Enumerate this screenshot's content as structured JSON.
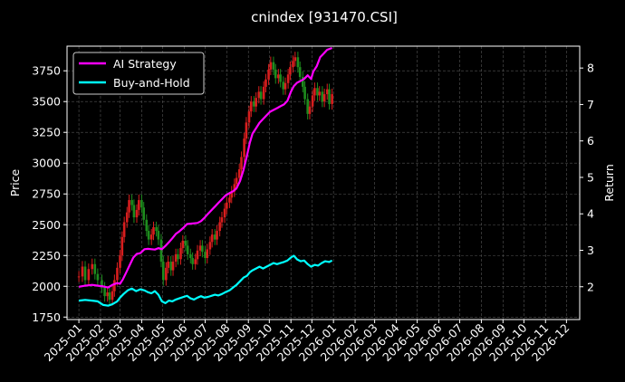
{
  "chart_data": {
    "type": "line",
    "title": "cnindex [931470.CSI]",
    "ylabel_left": "Price",
    "ylabel_right": "Return",
    "xlim": [
      "2024-12-15",
      "2026-12-20"
    ],
    "ylim_left": [
      1730,
      3950
    ],
    "ylim_right": [
      1.1,
      8.6
    ],
    "grid": true,
    "legend": "top-left",
    "x_ticks": [
      "2025-01",
      "2025-02",
      "2025-03",
      "2025-04",
      "2025-05",
      "2025-06",
      "2025-07",
      "2025-08",
      "2025-09",
      "2025-10",
      "2025-11",
      "2025-12",
      "2026-01",
      "2026-02",
      "2026-03",
      "2026-04",
      "2026-05",
      "2026-06",
      "2026-07",
      "2026-08",
      "2026-09",
      "2026-10",
      "2026-11",
      "2026-12"
    ],
    "y_ticks_left": [
      1750,
      2000,
      2250,
      2500,
      2750,
      3000,
      3250,
      3500,
      3750
    ],
    "y_ticks_right": [
      2,
      3,
      4,
      5,
      6,
      7,
      8
    ],
    "candles": {
      "name": "price",
      "colors": {
        "up": "#d81e1e",
        "down": "#1e8c1e"
      },
      "points": [
        [
          "2025-01-01",
          2080
        ],
        [
          "2025-01-06",
          2160
        ],
        [
          "2025-01-10",
          2050
        ],
        [
          "2025-01-15",
          2140
        ],
        [
          "2025-01-20",
          2180
        ],
        [
          "2025-01-24",
          2100
        ],
        [
          "2025-01-28",
          2050
        ],
        [
          "2025-02-03",
          1990
        ],
        [
          "2025-02-07",
          1920
        ],
        [
          "2025-02-11",
          1950
        ],
        [
          "2025-02-14",
          1890
        ],
        [
          "2025-02-18",
          1960
        ],
        [
          "2025-02-21",
          2050
        ],
        [
          "2025-02-25",
          2150
        ],
        [
          "2025-03-01",
          2250
        ],
        [
          "2025-03-04",
          2400
        ],
        [
          "2025-03-07",
          2520
        ],
        [
          "2025-03-11",
          2600
        ],
        [
          "2025-03-14",
          2700
        ],
        [
          "2025-03-18",
          2660
        ],
        [
          "2025-03-21",
          2560
        ],
        [
          "2025-03-25",
          2620
        ],
        [
          "2025-03-28",
          2700
        ],
        [
          "2025-04-01",
          2640
        ],
        [
          "2025-04-04",
          2540
        ],
        [
          "2025-04-08",
          2450
        ],
        [
          "2025-04-11",
          2380
        ],
        [
          "2025-04-15",
          2420
        ],
        [
          "2025-04-18",
          2480
        ],
        [
          "2025-04-22",
          2450
        ],
        [
          "2025-04-25",
          2380
        ],
        [
          "2025-04-29",
          2200
        ],
        [
          "2025-05-02",
          2050
        ],
        [
          "2025-05-06",
          2150
        ],
        [
          "2025-05-09",
          2200
        ],
        [
          "2025-05-13",
          2130
        ],
        [
          "2025-05-16",
          2200
        ],
        [
          "2025-05-20",
          2260
        ],
        [
          "2025-05-23",
          2220
        ],
        [
          "2025-05-27",
          2310
        ],
        [
          "2025-05-30",
          2370
        ],
        [
          "2025-06-03",
          2330
        ],
        [
          "2025-06-06",
          2260
        ],
        [
          "2025-06-10",
          2230
        ],
        [
          "2025-06-13",
          2180
        ],
        [
          "2025-06-17",
          2220
        ],
        [
          "2025-06-20",
          2290
        ],
        [
          "2025-06-24",
          2330
        ],
        [
          "2025-06-27",
          2280
        ],
        [
          "2025-07-01",
          2230
        ],
        [
          "2025-07-04",
          2300
        ],
        [
          "2025-07-08",
          2360
        ],
        [
          "2025-07-11",
          2420
        ],
        [
          "2025-07-15",
          2380
        ],
        [
          "2025-07-18",
          2450
        ],
        [
          "2025-07-22",
          2520
        ],
        [
          "2025-07-25",
          2560
        ],
        [
          "2025-07-29",
          2630
        ],
        [
          "2025-08-01",
          2680
        ],
        [
          "2025-08-05",
          2720
        ],
        [
          "2025-08-08",
          2770
        ],
        [
          "2025-08-12",
          2830
        ],
        [
          "2025-08-15",
          2880
        ],
        [
          "2025-08-19",
          2950
        ],
        [
          "2025-08-22",
          3050
        ],
        [
          "2025-08-26",
          3200
        ],
        [
          "2025-08-29",
          3330
        ],
        [
          "2025-09-02",
          3420
        ],
        [
          "2025-09-05",
          3500
        ],
        [
          "2025-09-09",
          3460
        ],
        [
          "2025-09-12",
          3530
        ],
        [
          "2025-09-16",
          3580
        ],
        [
          "2025-09-19",
          3520
        ],
        [
          "2025-09-23",
          3620
        ],
        [
          "2025-09-26",
          3680
        ],
        [
          "2025-09-30",
          3760
        ],
        [
          "2025-10-03",
          3820
        ],
        [
          "2025-10-07",
          3760
        ],
        [
          "2025-10-10",
          3690
        ],
        [
          "2025-10-14",
          3720
        ],
        [
          "2025-10-17",
          3660
        ],
        [
          "2025-10-21",
          3600
        ],
        [
          "2025-10-24",
          3650
        ],
        [
          "2025-10-28",
          3720
        ],
        [
          "2025-10-31",
          3780
        ],
        [
          "2025-11-04",
          3830
        ],
        [
          "2025-11-07",
          3860
        ],
        [
          "2025-11-11",
          3780
        ],
        [
          "2025-11-14",
          3700
        ],
        [
          "2025-11-18",
          3620
        ],
        [
          "2025-11-21",
          3520
        ],
        [
          "2025-11-25",
          3400
        ],
        [
          "2025-11-28",
          3460
        ],
        [
          "2025-12-02",
          3550
        ],
        [
          "2025-12-05",
          3610
        ],
        [
          "2025-12-09",
          3550
        ],
        [
          "2025-12-12",
          3580
        ],
        [
          "2025-12-16",
          3500
        ],
        [
          "2025-12-19",
          3560
        ],
        [
          "2025-12-23",
          3600
        ],
        [
          "2025-12-26",
          3480
        ],
        [
          "2025-12-30",
          3560
        ]
      ]
    },
    "series": [
      {
        "name": "AI Strategy",
        "axis": "right",
        "color": "#ff00ff",
        "points": [
          [
            "2025-01-01",
            2.0
          ],
          [
            "2025-01-10",
            2.03
          ],
          [
            "2025-01-20",
            2.05
          ],
          [
            "2025-01-28",
            2.03
          ],
          [
            "2025-02-05",
            2.01
          ],
          [
            "2025-02-12",
            1.98
          ],
          [
            "2025-02-18",
            2.05
          ],
          [
            "2025-02-25",
            2.1
          ],
          [
            "2025-03-01",
            2.08
          ],
          [
            "2025-03-05",
            2.2
          ],
          [
            "2025-03-10",
            2.4
          ],
          [
            "2025-03-15",
            2.6
          ],
          [
            "2025-03-20",
            2.8
          ],
          [
            "2025-03-25",
            2.9
          ],
          [
            "2025-03-30",
            2.92
          ],
          [
            "2025-04-05",
            3.03
          ],
          [
            "2025-04-10",
            3.04
          ],
          [
            "2025-04-15",
            3.03
          ],
          [
            "2025-04-20",
            3.02
          ],
          [
            "2025-04-25",
            3.06
          ],
          [
            "2025-04-30",
            3.03
          ],
          [
            "2025-05-05",
            3.12
          ],
          [
            "2025-05-10",
            3.22
          ],
          [
            "2025-05-15",
            3.33
          ],
          [
            "2025-05-20",
            3.45
          ],
          [
            "2025-05-25",
            3.52
          ],
          [
            "2025-05-31",
            3.62
          ],
          [
            "2025-06-05",
            3.72
          ],
          [
            "2025-06-10",
            3.73
          ],
          [
            "2025-06-15",
            3.74
          ],
          [
            "2025-06-20",
            3.75
          ],
          [
            "2025-06-25",
            3.8
          ],
          [
            "2025-06-30",
            3.89
          ],
          [
            "2025-07-05",
            4.0
          ],
          [
            "2025-07-10",
            4.1
          ],
          [
            "2025-07-15",
            4.2
          ],
          [
            "2025-07-20",
            4.3
          ],
          [
            "2025-07-25",
            4.4
          ],
          [
            "2025-07-30",
            4.5
          ],
          [
            "2025-08-05",
            4.57
          ],
          [
            "2025-08-10",
            4.62
          ],
          [
            "2025-08-15",
            4.7
          ],
          [
            "2025-08-20",
            4.9
          ],
          [
            "2025-08-25",
            5.2
          ],
          [
            "2025-08-30",
            5.6
          ],
          [
            "2025-09-03",
            5.95
          ],
          [
            "2025-09-07",
            6.2
          ],
          [
            "2025-09-12",
            6.35
          ],
          [
            "2025-09-17",
            6.5
          ],
          [
            "2025-09-22",
            6.6
          ],
          [
            "2025-09-27",
            6.7
          ],
          [
            "2025-10-02",
            6.8
          ],
          [
            "2025-10-07",
            6.85
          ],
          [
            "2025-10-12",
            6.9
          ],
          [
            "2025-10-17",
            6.95
          ],
          [
            "2025-10-22",
            7.0
          ],
          [
            "2025-10-27",
            7.1
          ],
          [
            "2025-11-01",
            7.35
          ],
          [
            "2025-11-05",
            7.5
          ],
          [
            "2025-11-10",
            7.6
          ],
          [
            "2025-11-15",
            7.65
          ],
          [
            "2025-11-20",
            7.7
          ],
          [
            "2025-11-25",
            7.8
          ],
          [
            "2025-11-30",
            7.7
          ],
          [
            "2025-12-03",
            7.9
          ],
          [
            "2025-12-08",
            8.05
          ],
          [
            "2025-12-13",
            8.3
          ],
          [
            "2025-12-18",
            8.4
          ],
          [
            "2025-12-23",
            8.5
          ],
          [
            "2025-12-30",
            8.55
          ]
        ]
      },
      {
        "name": "Buy-and-Hold",
        "axis": "right",
        "color": "#00ffff",
        "points": [
          [
            "2025-01-01",
            1.62
          ],
          [
            "2025-01-10",
            1.64
          ],
          [
            "2025-01-20",
            1.62
          ],
          [
            "2025-01-28",
            1.6
          ],
          [
            "2025-02-05",
            1.5
          ],
          [
            "2025-02-12",
            1.48
          ],
          [
            "2025-02-18",
            1.52
          ],
          [
            "2025-02-25",
            1.6
          ],
          [
            "2025-03-01",
            1.7
          ],
          [
            "2025-03-06",
            1.8
          ],
          [
            "2025-03-12",
            1.9
          ],
          [
            "2025-03-18",
            1.95
          ],
          [
            "2025-03-24",
            1.88
          ],
          [
            "2025-03-30",
            1.93
          ],
          [
            "2025-04-05",
            1.9
          ],
          [
            "2025-04-10",
            1.85
          ],
          [
            "2025-04-15",
            1.82
          ],
          [
            "2025-04-20",
            1.88
          ],
          [
            "2025-04-25",
            1.78
          ],
          [
            "2025-04-30",
            1.6
          ],
          [
            "2025-05-05",
            1.55
          ],
          [
            "2025-05-10",
            1.62
          ],
          [
            "2025-05-15",
            1.6
          ],
          [
            "2025-05-20",
            1.65
          ],
          [
            "2025-05-25",
            1.68
          ],
          [
            "2025-05-31",
            1.72
          ],
          [
            "2025-06-05",
            1.75
          ],
          [
            "2025-06-10",
            1.68
          ],
          [
            "2025-06-15",
            1.65
          ],
          [
            "2025-06-20",
            1.7
          ],
          [
            "2025-06-25",
            1.74
          ],
          [
            "2025-06-30",
            1.7
          ],
          [
            "2025-07-05",
            1.72
          ],
          [
            "2025-07-10",
            1.75
          ],
          [
            "2025-07-15",
            1.78
          ],
          [
            "2025-07-20",
            1.76
          ],
          [
            "2025-07-25",
            1.8
          ],
          [
            "2025-07-30",
            1.85
          ],
          [
            "2025-08-05",
            1.9
          ],
          [
            "2025-08-10",
            1.98
          ],
          [
            "2025-08-15",
            2.05
          ],
          [
            "2025-08-20",
            2.15
          ],
          [
            "2025-08-25",
            2.25
          ],
          [
            "2025-08-30",
            2.3
          ],
          [
            "2025-09-03",
            2.4
          ],
          [
            "2025-09-07",
            2.45
          ],
          [
            "2025-09-12",
            2.5
          ],
          [
            "2025-09-17",
            2.55
          ],
          [
            "2025-09-22",
            2.5
          ],
          [
            "2025-09-27",
            2.55
          ],
          [
            "2025-10-02",
            2.6
          ],
          [
            "2025-10-07",
            2.65
          ],
          [
            "2025-10-12",
            2.62
          ],
          [
            "2025-10-17",
            2.65
          ],
          [
            "2025-10-22",
            2.68
          ],
          [
            "2025-10-27",
            2.72
          ],
          [
            "2025-11-01",
            2.8
          ],
          [
            "2025-11-05",
            2.85
          ],
          [
            "2025-11-10",
            2.75
          ],
          [
            "2025-11-15",
            2.7
          ],
          [
            "2025-11-20",
            2.72
          ],
          [
            "2025-11-25",
            2.62
          ],
          [
            "2025-11-30",
            2.55
          ],
          [
            "2025-12-05",
            2.6
          ],
          [
            "2025-12-10",
            2.58
          ],
          [
            "2025-12-15",
            2.65
          ],
          [
            "2025-12-20",
            2.7
          ],
          [
            "2025-12-26",
            2.68
          ],
          [
            "2025-12-30",
            2.72
          ]
        ]
      }
    ]
  }
}
